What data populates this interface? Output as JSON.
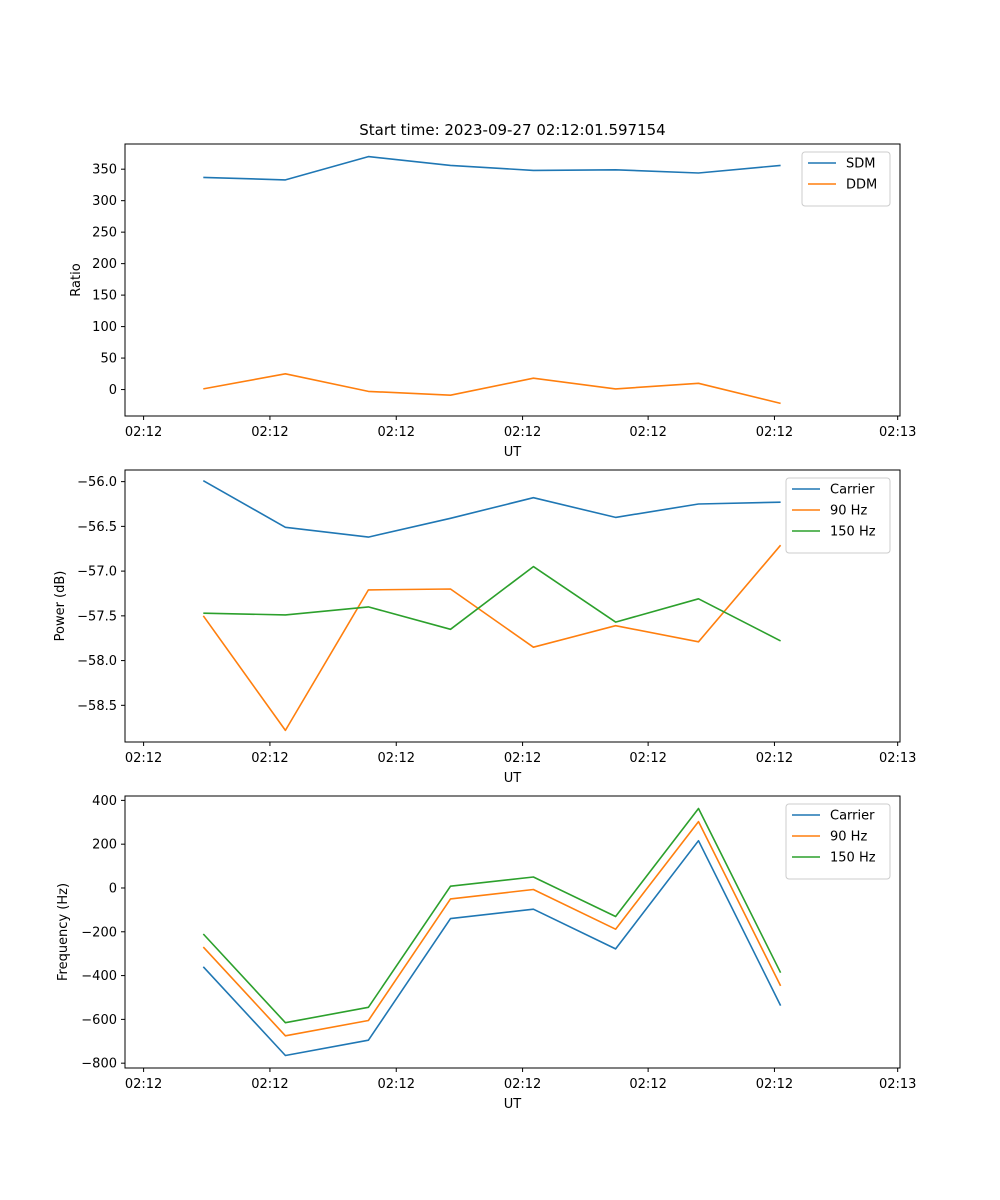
{
  "chart_data": [
    {
      "type": "line",
      "title": "Start time: 2023-09-27 02:12:01.597154",
      "xlabel": "UT",
      "ylabel": "Ratio",
      "x_ticks": [
        "02:12",
        "02:12",
        "02:12",
        "02:12",
        "02:12",
        "02:12",
        "02:12"
      ],
      "x_tick_last": "02:13",
      "y_ticks": [
        "0",
        "50",
        "100",
        "150",
        "200",
        "250",
        "300",
        "350"
      ],
      "ylim": [
        -42,
        390
      ],
      "legend_position": "top-right",
      "series": [
        {
          "name": "SDM",
          "color": "#1f77b4",
          "values": [
            337,
            333,
            370,
            356,
            348,
            349,
            344,
            356
          ]
        },
        {
          "name": "DDM",
          "color": "#ff7f0e",
          "values": [
            1,
            25,
            -3,
            -9,
            18,
            1,
            10,
            -22
          ]
        }
      ]
    },
    {
      "type": "line",
      "title": "",
      "xlabel": "UT",
      "ylabel": "Power (dB)",
      "x_ticks": [
        "02:12",
        "02:12",
        "02:12",
        "02:12",
        "02:12",
        "02:12",
        "02:12"
      ],
      "x_tick_last": "02:13",
      "y_ticks": [
        "−58.5",
        "−58.0",
        "−57.5",
        "−57.0",
        "−56.5",
        "−56.0"
      ],
      "ylim": [
        -58.91,
        -55.87
      ],
      "legend_position": "top-right",
      "series": [
        {
          "name": "Carrier",
          "color": "#1f77b4",
          "values": [
            -55.99,
            -56.51,
            -56.62,
            -56.41,
            -56.18,
            -56.4,
            -56.25,
            -56.23
          ]
        },
        {
          "name": "90 Hz",
          "color": "#ff7f0e",
          "values": [
            -57.5,
            -58.78,
            -57.21,
            -57.2,
            -57.85,
            -57.61,
            -57.79,
            -56.71
          ]
        },
        {
          "name": "150 Hz",
          "color": "#2ca02c",
          "values": [
            -57.47,
            -57.49,
            -57.4,
            -57.65,
            -56.95,
            -57.57,
            -57.31,
            -57.78
          ]
        }
      ]
    },
    {
      "type": "line",
      "title": "",
      "xlabel": "UT",
      "ylabel": "Frequency (Hz)",
      "x_ticks": [
        "02:12",
        "02:12",
        "02:12",
        "02:12",
        "02:12",
        "02:12",
        "02:12"
      ],
      "x_tick_last": "02:13",
      "y_ticks": [
        "−800",
        "−600",
        "−400",
        "−200",
        "0",
        "200",
        "400"
      ],
      "ylim": [
        -822,
        420
      ],
      "legend_position": "top-right",
      "series": [
        {
          "name": "Carrier",
          "color": "#1f77b4",
          "values": [
            -360,
            -765,
            -695,
            -140,
            -97,
            -278,
            216,
            -537
          ]
        },
        {
          "name": "90 Hz",
          "color": "#ff7f0e",
          "values": [
            -270,
            -675,
            -605,
            -50,
            -7,
            -188,
            303,
            -447
          ]
        },
        {
          "name": "150 Hz",
          "color": "#2ca02c",
          "values": [
            -210,
            -615,
            -545,
            8,
            50,
            -130,
            363,
            -387
          ]
        }
      ]
    }
  ]
}
